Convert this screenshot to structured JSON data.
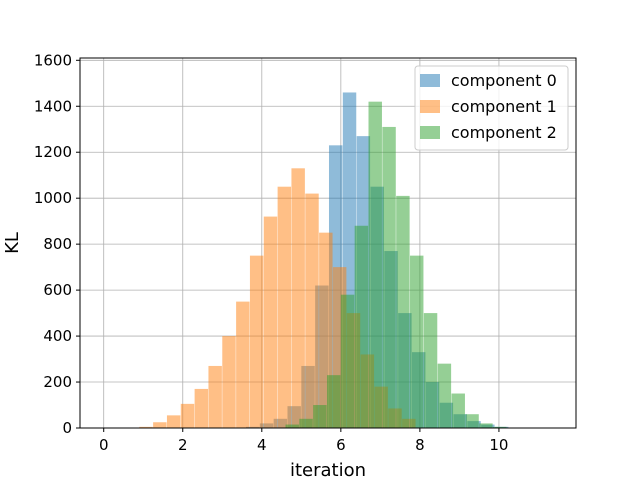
{
  "chart_data": {
    "type": "bar",
    "subtype": "overlapping histogram",
    "xlabel": "iteration",
    "ylabel": "KL",
    "xlim": [
      -0.6,
      11.95
    ],
    "ylim": [
      0,
      1610
    ],
    "xticks": [
      0,
      2,
      4,
      6,
      8,
      10
    ],
    "yticks": [
      0,
      200,
      400,
      600,
      800,
      1000,
      1200,
      1400,
      1600
    ],
    "grid": true,
    "legend_position": "upper right",
    "bin_width": 0.34,
    "series": [
      {
        "name": "component 0",
        "color": "#1f77b4",
        "opacity": 0.5,
        "bins": [
          [
            3.6,
            5
          ],
          [
            3.95,
            20
          ],
          [
            4.3,
            40
          ],
          [
            4.65,
            95
          ],
          [
            5.0,
            270
          ],
          [
            5.35,
            620
          ],
          [
            5.7,
            1230
          ],
          [
            6.05,
            1460
          ],
          [
            6.4,
            1270
          ],
          [
            6.75,
            1050
          ],
          [
            7.1,
            770
          ],
          [
            7.45,
            500
          ],
          [
            7.8,
            330
          ],
          [
            8.15,
            200
          ],
          [
            8.5,
            110
          ],
          [
            8.85,
            60
          ],
          [
            9.2,
            30
          ],
          [
            9.55,
            15
          ],
          [
            9.9,
            5
          ],
          [
            10.25,
            2
          ]
        ]
      },
      {
        "name": "component 1",
        "color": "#ff7f0e",
        "opacity": 0.5,
        "bins": [
          [
            0.9,
            5
          ],
          [
            1.25,
            25
          ],
          [
            1.6,
            55
          ],
          [
            1.95,
            105
          ],
          [
            2.3,
            170
          ],
          [
            2.65,
            270
          ],
          [
            3.0,
            400
          ],
          [
            3.35,
            550
          ],
          [
            3.7,
            750
          ],
          [
            4.05,
            920
          ],
          [
            4.4,
            1050
          ],
          [
            4.75,
            1130
          ],
          [
            5.1,
            1020
          ],
          [
            5.45,
            850
          ],
          [
            5.8,
            700
          ],
          [
            6.15,
            500
          ],
          [
            6.5,
            320
          ],
          [
            6.85,
            180
          ],
          [
            7.2,
            85
          ],
          [
            7.55,
            40
          ]
        ]
      },
      {
        "name": "component 2",
        "color": "#2ca02c",
        "opacity": 0.5,
        "bins": [
          [
            4.6,
            15
          ],
          [
            4.95,
            40
          ],
          [
            5.3,
            100
          ],
          [
            5.65,
            230
          ],
          [
            6.0,
            580
          ],
          [
            6.35,
            880
          ],
          [
            6.7,
            1420
          ],
          [
            7.05,
            1310
          ],
          [
            7.4,
            1010
          ],
          [
            7.75,
            750
          ],
          [
            8.1,
            500
          ],
          [
            8.45,
            280
          ],
          [
            8.8,
            150
          ],
          [
            9.15,
            60
          ],
          [
            9.5,
            20
          ],
          [
            9.85,
            5
          ]
        ]
      }
    ]
  }
}
